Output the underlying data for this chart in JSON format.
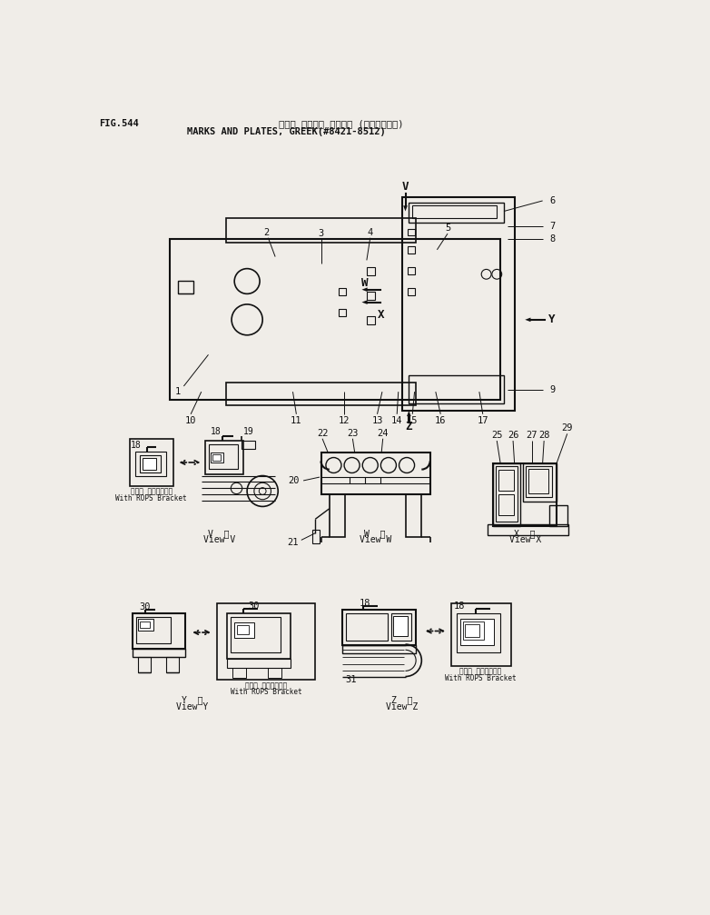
{
  "title_japanese": "マーク オヨビピ プレート (ギリシャゴゴ)",
  "title_english": "MARKS AND PLATES, GREEK(#8421-8512)",
  "fig_label": "FIG.544",
  "bg_color": "#f0ede8",
  "line_color": "#111111",
  "text_color": "#111111"
}
